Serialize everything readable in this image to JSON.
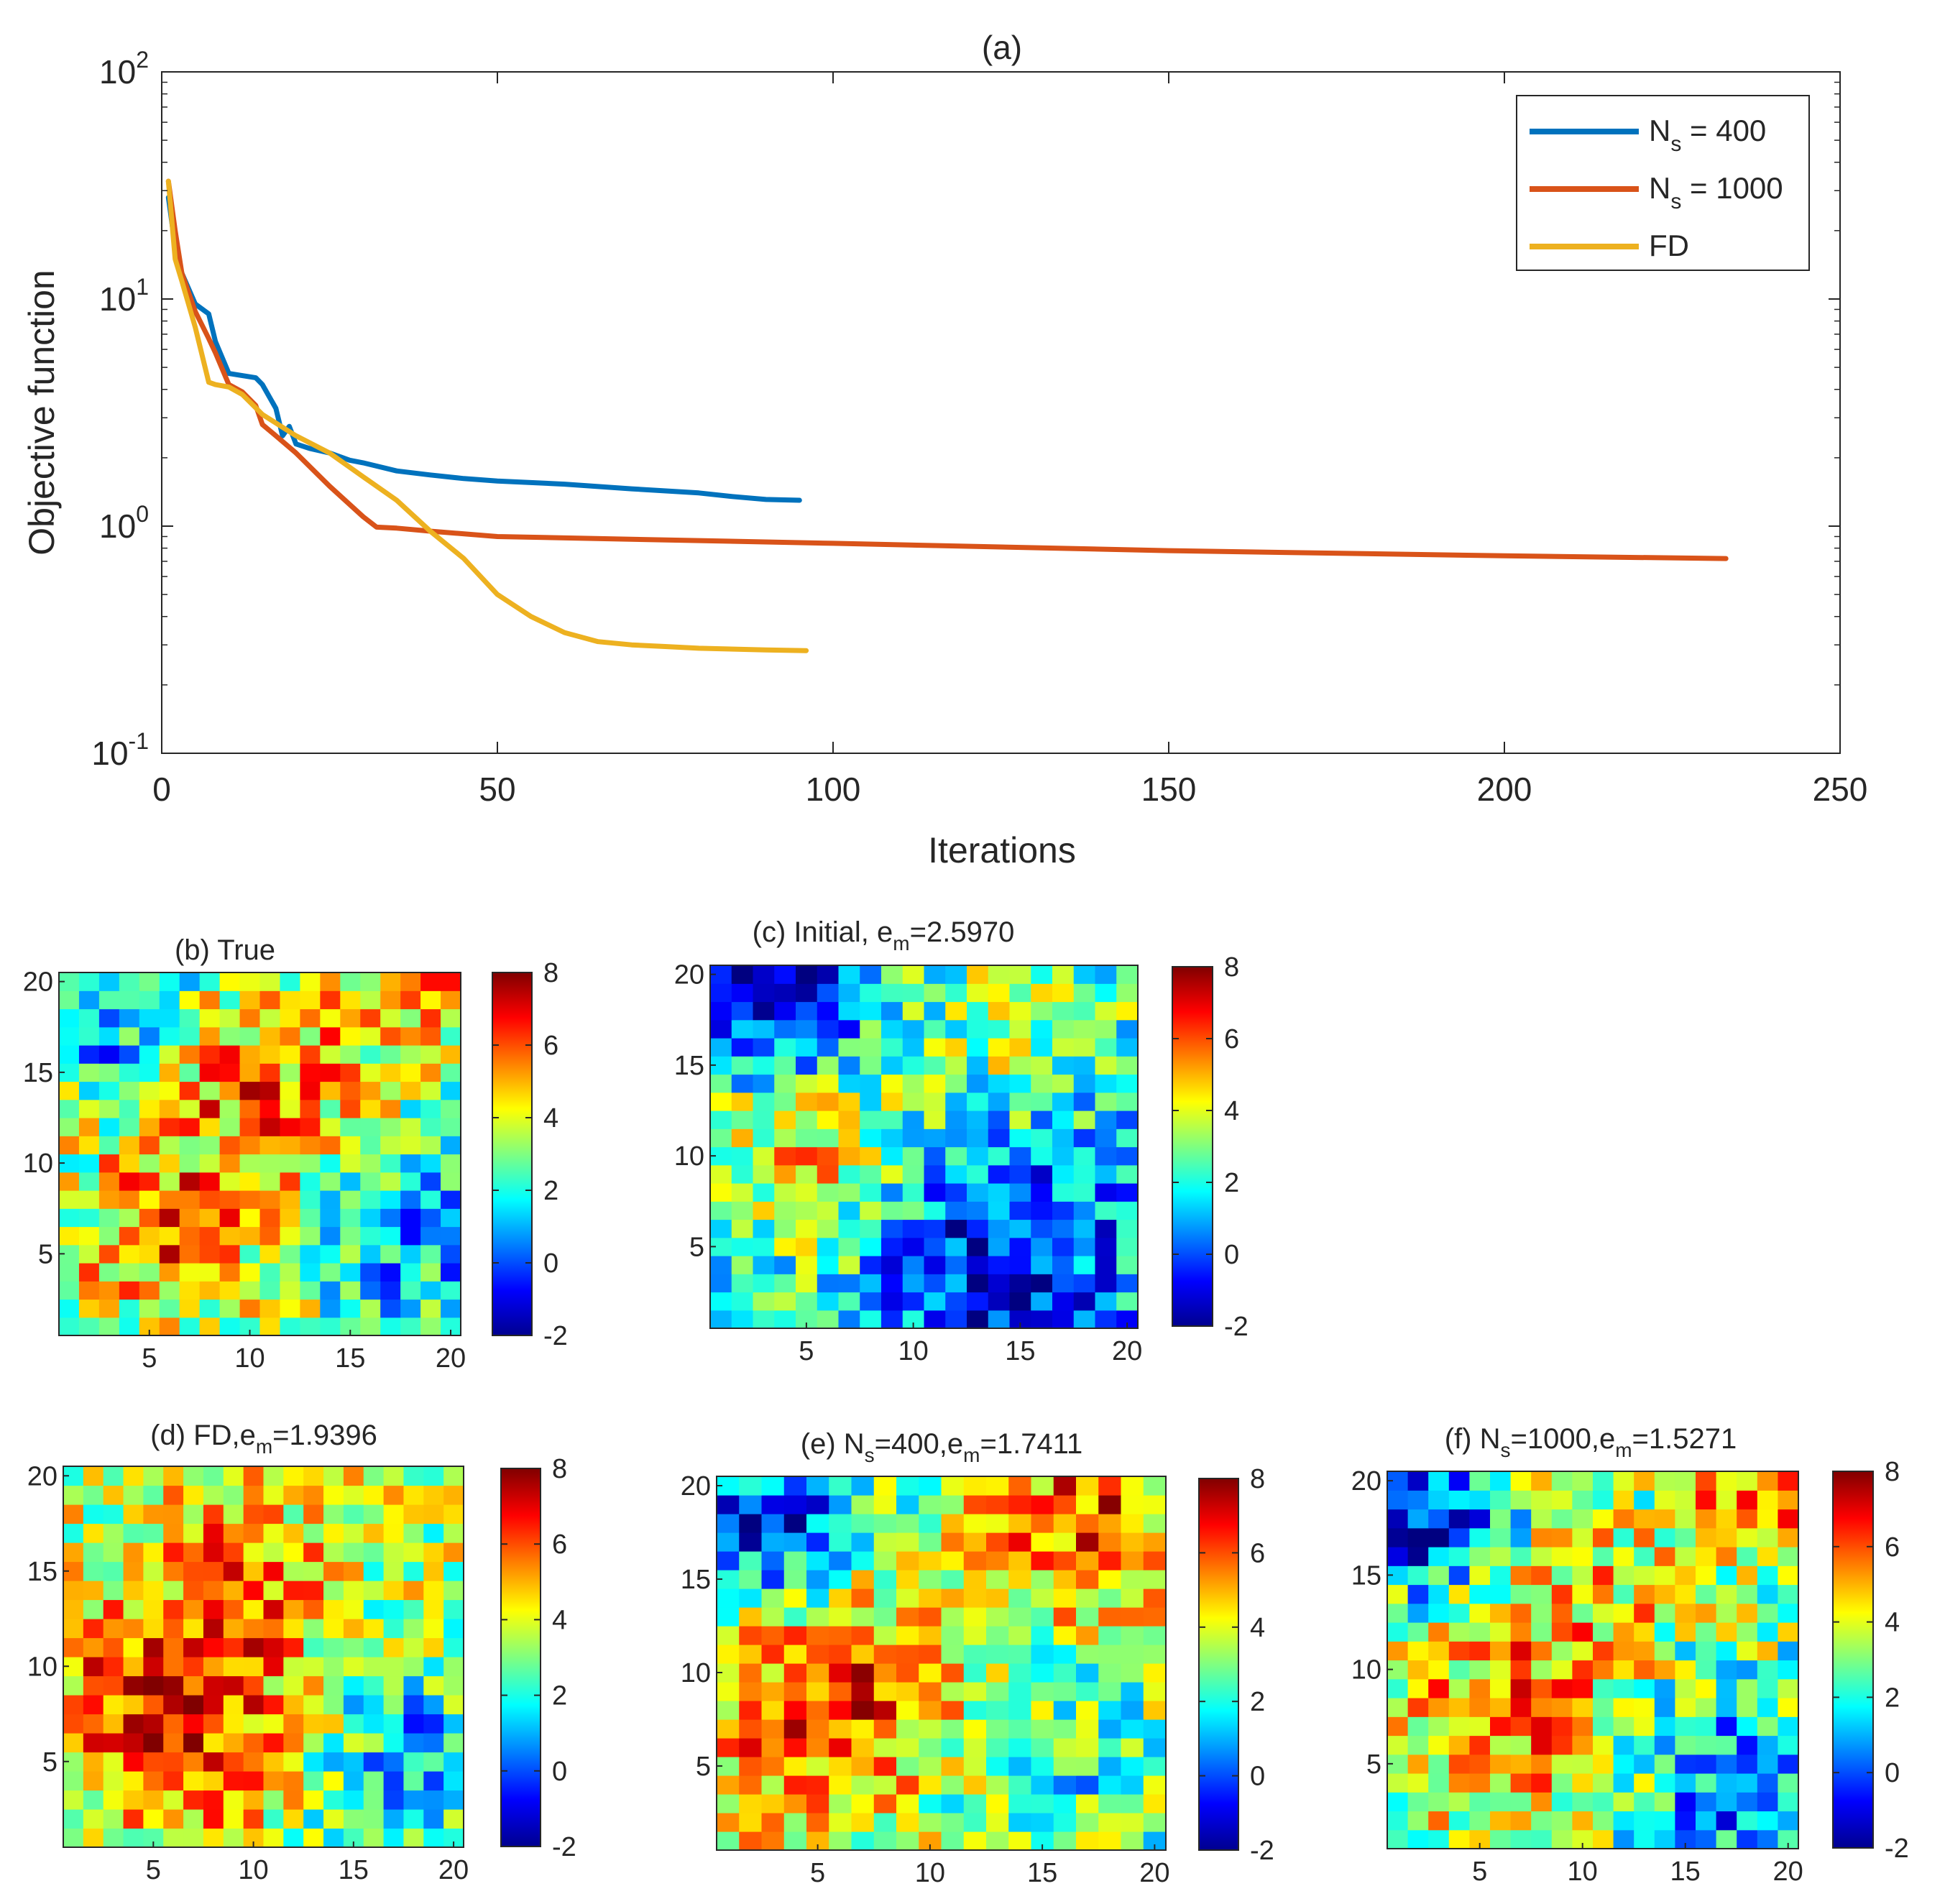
{
  "figure": {
    "panel_a": {
      "title": "(a)",
      "xlabel": "Iterations",
      "ylabel": "Objective function",
      "xticks": [
        0,
        50,
        100,
        150,
        200,
        250
      ],
      "yticks": [
        {
          "base": "10",
          "exp": "2"
        },
        {
          "base": "10",
          "exp": "1"
        },
        {
          "base": "10",
          "exp": "0"
        },
        {
          "base": "10",
          "exp": "-1"
        }
      ],
      "legend": [
        {
          "main": "N",
          "sub": "s",
          "rest": " = 400"
        },
        {
          "main": "N",
          "sub": "s",
          "rest": " = 1000"
        },
        {
          "main": "FD",
          "sub": "",
          "rest": ""
        }
      ]
    },
    "panel_b": {
      "title_main": "(b) True",
      "title_sub": "",
      "title_rest": ""
    },
    "panel_c": {
      "title_main": "(c) Initial, e",
      "title_sub": "m",
      "title_rest": "=2.5970"
    },
    "panel_d": {
      "title_main": "(d) FD,e",
      "title_sub": "m",
      "title_rest": "=1.9396"
    },
    "panel_e": {
      "title_main": "(e) N",
      "title_sub": "s",
      "title_rest": "=400,e",
      "title_sub2": "m",
      "title_rest2": "=1.7411"
    },
    "panel_f": {
      "title_main": "(f) N",
      "title_sub": "s",
      "title_rest": "=1000,e",
      "title_sub2": "m",
      "title_rest2": "=1.5271"
    },
    "map_ticks": [
      "5",
      "10",
      "15",
      "20"
    ],
    "colorbar_ticks": [
      "8",
      "6",
      "4",
      "2",
      "0",
      "-2"
    ]
  },
  "chart_data": [
    {
      "type": "line",
      "title": "(a)",
      "xlabel": "Iterations",
      "ylabel": "Objective function",
      "xlim": [
        0,
        250
      ],
      "ylim": [
        0.1,
        100
      ],
      "yscale": "log",
      "grid": false,
      "legend_position": "top-right",
      "series": [
        {
          "name": "Ns = 400",
          "color": "#0072BD",
          "x": [
            1,
            2,
            3,
            5,
            7,
            8,
            10,
            12,
            14,
            15,
            17,
            18,
            19,
            20,
            22,
            25,
            28,
            30,
            35,
            40,
            45,
            50,
            60,
            70,
            80,
            85,
            90,
            95
          ],
          "y": [
            28,
            17,
            13,
            9.5,
            8.6,
            6.5,
            4.7,
            4.6,
            4.5,
            4.2,
            3.3,
            2.5,
            2.75,
            2.3,
            2.2,
            2.1,
            1.95,
            1.9,
            1.75,
            1.68,
            1.62,
            1.58,
            1.53,
            1.46,
            1.4,
            1.35,
            1.31,
            1.3
          ]
        },
        {
          "name": "Ns = 1000",
          "color": "#D95319",
          "x": [
            1,
            2,
            3,
            5,
            7,
            8,
            10,
            12,
            14,
            15,
            17,
            20,
            25,
            30,
            32,
            35,
            40,
            50,
            100,
            150,
            200,
            233
          ],
          "y": [
            33,
            20,
            13,
            8.8,
            6.7,
            5.8,
            4.2,
            3.9,
            3.4,
            2.8,
            2.5,
            2.1,
            1.5,
            1.1,
            0.99,
            0.98,
            0.95,
            0.9,
            0.84,
            0.78,
            0.74,
            0.72
          ]
        },
        {
          "name": "FD",
          "color": "#EDB120",
          "x": [
            1,
            2,
            3,
            5,
            7,
            8,
            10,
            12,
            15,
            20,
            25,
            30,
            35,
            40,
            45,
            50,
            55,
            60,
            65,
            70,
            75,
            80,
            90,
            96
          ],
          "y": [
            33,
            15,
            12,
            7.5,
            4.3,
            4.2,
            4.1,
            3.8,
            3.1,
            2.5,
            2.1,
            1.65,
            1.3,
            0.95,
            0.72,
            0.5,
            0.4,
            0.34,
            0.31,
            0.3,
            0.295,
            0.29,
            0.285,
            0.283
          ]
        }
      ]
    },
    {
      "type": "heatmap",
      "title": "(b) True",
      "xlim": [
        1,
        20
      ],
      "ylim": [
        1,
        20
      ],
      "clim": [
        -2,
        8
      ],
      "colormap": "jet"
    },
    {
      "type": "heatmap",
      "title": "(c) Initial, em=2.5970",
      "xlim": [
        1,
        20
      ],
      "ylim": [
        1,
        20
      ],
      "clim": [
        -2,
        8
      ],
      "colormap": "jet"
    },
    {
      "type": "heatmap",
      "title": "(d) FD,em=1.9396",
      "xlim": [
        1,
        20
      ],
      "ylim": [
        1,
        20
      ],
      "clim": [
        -2,
        8
      ],
      "colormap": "jet"
    },
    {
      "type": "heatmap",
      "title": "(e) Ns=400,em=1.7411",
      "xlim": [
        1,
        20
      ],
      "ylim": [
        1,
        20
      ],
      "clim": [
        -2,
        8
      ],
      "colormap": "jet"
    },
    {
      "type": "heatmap",
      "title": "(f) Ns=1000,em=1.5271",
      "xlim": [
        1,
        20
      ],
      "ylim": [
        1,
        20
      ],
      "clim": [
        -2,
        8
      ],
      "colormap": "jet"
    }
  ]
}
